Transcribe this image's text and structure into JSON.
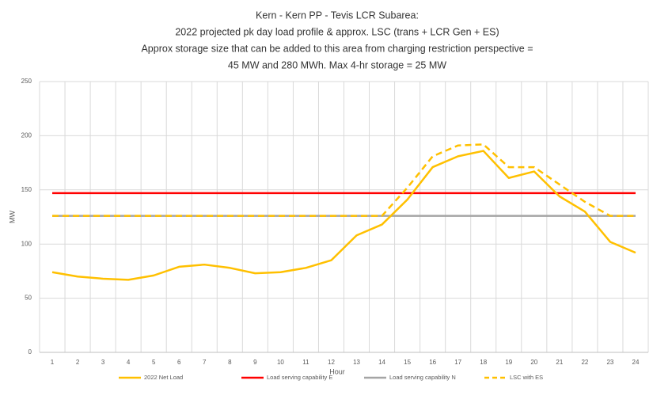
{
  "chart_data": {
    "type": "line",
    "title": [
      "Kern - Kern PP - Tevis LCR Subarea:",
      "2022 projected pk day load profile & approx. LSC (trans + LCR Gen + ES)",
      "Approx storage size that can be added to this area from charging restriction perspective =",
      "45 MW and 280 MWh. Max 4-hr storage = 25 MW"
    ],
    "x_label": "Hour",
    "y_label": "MW",
    "categories": [
      "1",
      "2",
      "3",
      "4",
      "5",
      "6",
      "7",
      "8",
      "9",
      "10",
      "11",
      "12",
      "13",
      "14",
      "15",
      "16",
      "17",
      "18",
      "19",
      "20",
      "21",
      "22",
      "23",
      "24"
    ],
    "series": [
      {
        "name": "2022 Net Load",
        "color": "#ffc000",
        "dashed": false,
        "values": [
          74,
          70,
          68,
          67,
          71,
          79,
          81,
          78,
          73,
          74,
          78,
          85,
          108,
          118,
          141,
          171,
          181,
          186,
          161,
          167,
          144,
          130,
          102,
          92
        ]
      },
      {
        "name": "Load serving capability E",
        "color": "#ff0000",
        "dashed": false,
        "values": [
          147,
          147,
          147,
          147,
          147,
          147,
          147,
          147,
          147,
          147,
          147,
          147,
          147,
          147,
          147,
          147,
          147,
          147,
          147,
          147,
          147,
          147,
          147,
          147
        ]
      },
      {
        "name": "Load serving capability N",
        "color": "#a5a5a5",
        "dashed": false,
        "values": [
          126,
          126,
          126,
          126,
          126,
          126,
          126,
          126,
          126,
          126,
          126,
          126,
          126,
          126,
          126,
          126,
          126,
          126,
          126,
          126,
          126,
          126,
          126,
          126
        ]
      },
      {
        "name": "LSC with ES",
        "color": "#ffc000",
        "dashed": true,
        "values": [
          126,
          126,
          126,
          126,
          126,
          126,
          126,
          126,
          126,
          126,
          126,
          126,
          126,
          126,
          152,
          181,
          191,
          192,
          171,
          171,
          155,
          139,
          126,
          126
        ]
      }
    ],
    "ylim": [
      0,
      250
    ],
    "yticks": [
      0,
      50,
      100,
      150,
      200,
      250
    ],
    "grid": true,
    "legend": "bottom"
  }
}
